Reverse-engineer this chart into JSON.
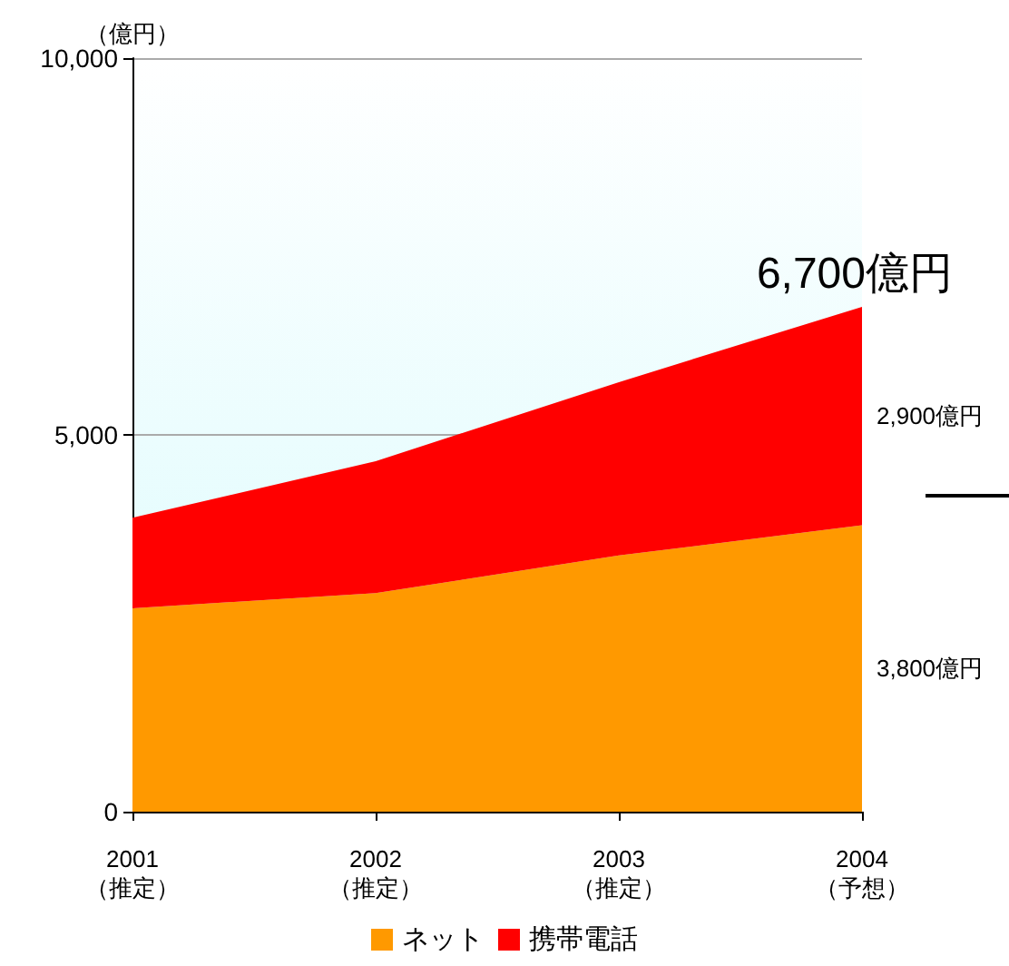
{
  "chart_data": {
    "type": "area",
    "stacked": true,
    "ylabel": "（億円）",
    "categories": [
      "2001\n（推定）",
      "2002\n（推定）",
      "2003\n（推定）",
      "2004\n（予想）"
    ],
    "series": [
      {
        "name": "ネット",
        "color": "#ff9900",
        "values": [
          2700,
          2900,
          3400,
          3800
        ]
      },
      {
        "name": "携帯電話",
        "color": "#ff0000",
        "values": [
          1200,
          1750,
          2300,
          2900
        ]
      }
    ],
    "totals": [
      null,
      null,
      null,
      "6,700億円"
    ],
    "annotations": [
      {
        "text": "2,900億円",
        "x": "2004\n（予想）",
        "y": 5250
      },
      {
        "text": "3,800億円",
        "x": "2004\n（予想）",
        "y": 1900
      }
    ],
    "ylim": [
      0,
      10000
    ],
    "yticks": [
      {
        "value": 0,
        "label": "0"
      },
      {
        "value": 5000,
        "label": "5,000"
      },
      {
        "value": 10000,
        "label": "10,000"
      }
    ],
    "grid": "y",
    "legend": "bottom"
  }
}
